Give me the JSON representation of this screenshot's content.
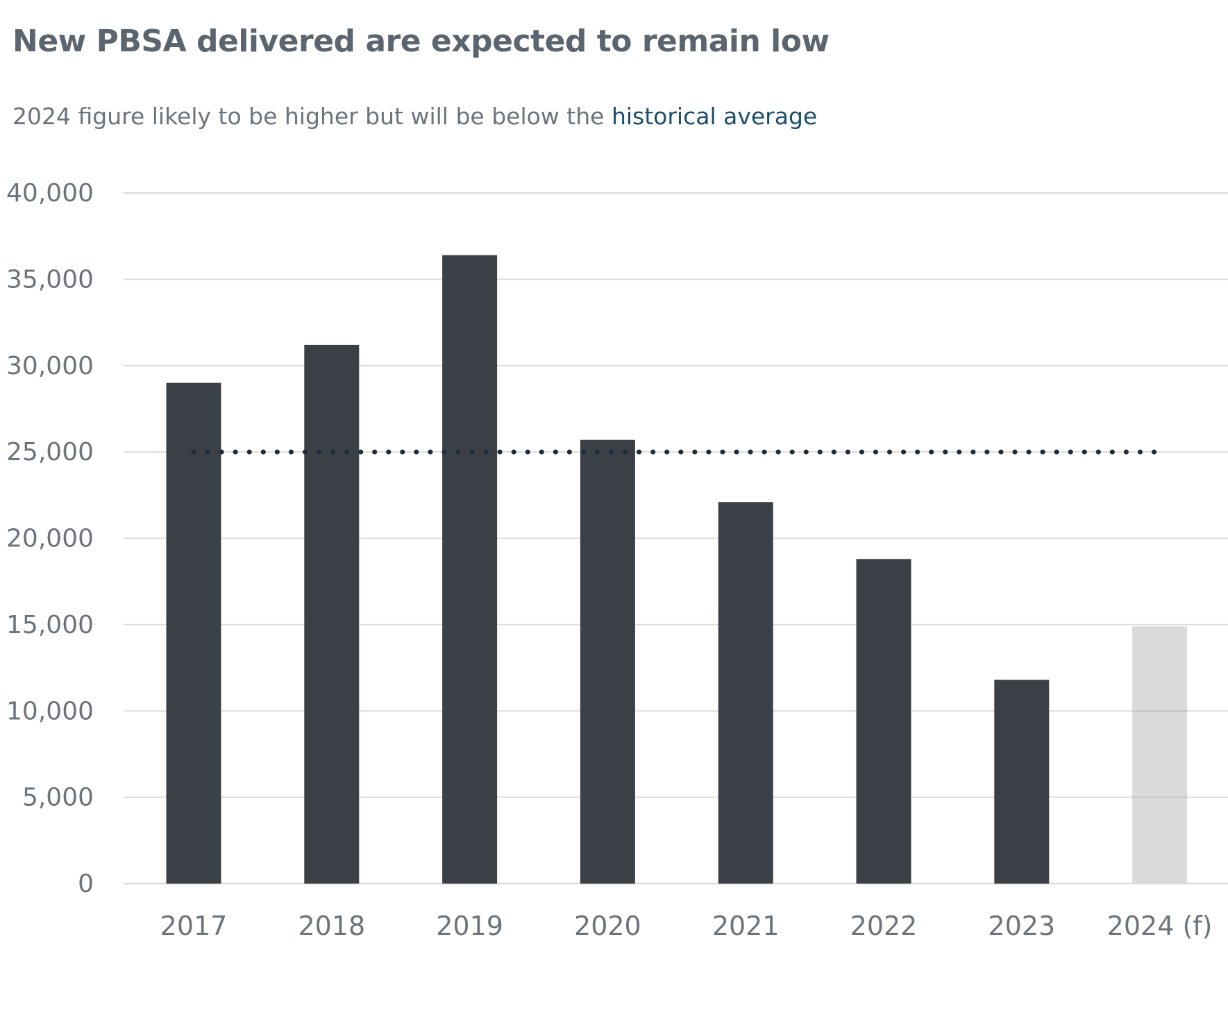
{
  "title": "New PBSA delivered are expected to remain low",
  "subtitle": {
    "text_before": "2024 figure likely to be higher but will be below the",
    "highlight": "historical average"
  },
  "colors": {
    "actual_bar": "#3a4046",
    "forecast_bar": "#d9dadc",
    "average_line": "#1a2e40",
    "gridline": "#dcdcdc",
    "subtitle_highlight": "#1d4e6b"
  },
  "chart_data": {
    "type": "bar",
    "title": "New PBSA delivered are expected to remain low",
    "subtitle": "2024 figure likely to be higher but will be below the historical average",
    "categories": [
      "2017",
      "2018",
      "2019",
      "2020",
      "2021",
      "2022",
      "2023",
      "2024 (f)"
    ],
    "values": [
      29000,
      31200,
      36400,
      25700,
      22100,
      18800,
      11800,
      14900
    ],
    "forecast": [
      false,
      false,
      false,
      false,
      false,
      false,
      false,
      true
    ],
    "reference_line": {
      "value": 25000,
      "style": "dotted"
    },
    "ylim": [
      0,
      40000
    ],
    "yticks": [
      0,
      5000,
      10000,
      15000,
      20000,
      25000,
      30000,
      35000,
      40000
    ],
    "ytick_labels": [
      "0",
      "5,000",
      "10,000",
      "15,000",
      "20,000",
      "25,000",
      "30,000",
      "35,000",
      "40,000"
    ],
    "xlabel": "",
    "ylabel": "",
    "grid": true,
    "legend": "none"
  }
}
